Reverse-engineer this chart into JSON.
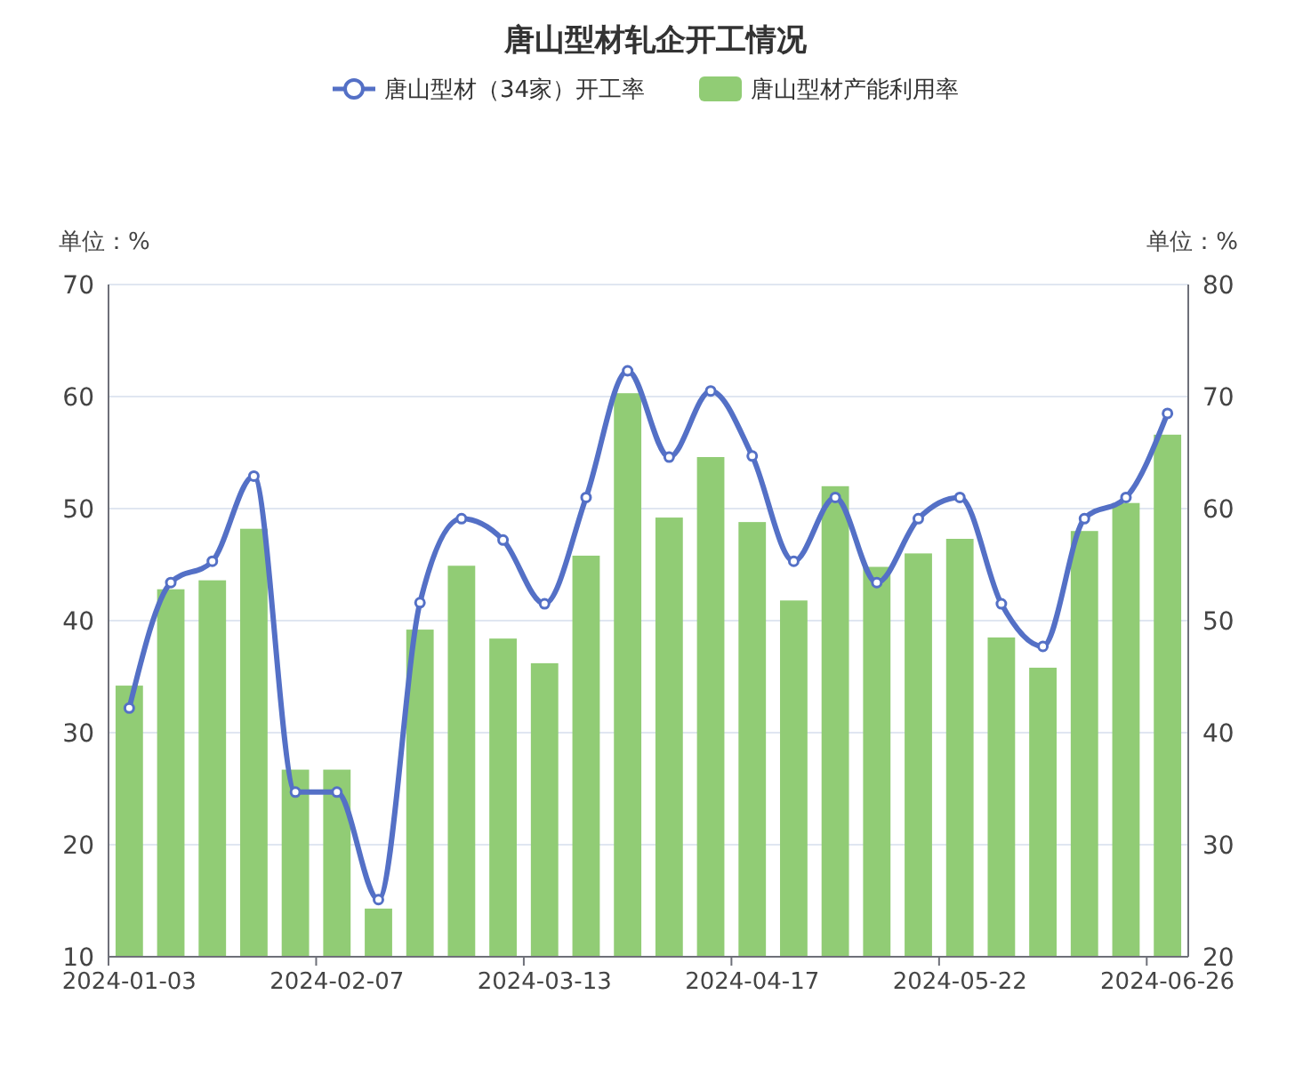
{
  "chart_data": {
    "type": "bar",
    "title": "唐山型材轧企开工情况",
    "ylabel": "单位：%",
    "y2label": "单位：%",
    "categories": [
      "2024-01-03",
      null,
      null,
      null,
      null,
      "2024-02-07",
      null,
      null,
      null,
      null,
      "2024-03-13",
      null,
      null,
      null,
      null,
      "2024-04-17",
      null,
      null,
      null,
      null,
      "2024-05-22",
      null,
      null,
      null,
      null,
      "2024-06-26"
    ],
    "series": [
      {
        "name": "唐山型材（34家）开工率",
        "type": "line",
        "color": "#5470c6",
        "marker": "circle",
        "values": [
          32.2,
          43.4,
          45.3,
          52.9,
          24.7,
          24.7,
          15.1,
          41.6,
          49.1,
          47.2,
          41.5,
          51.0,
          62.3,
          54.6,
          60.5,
          54.7,
          45.3,
          51.0,
          43.4,
          49.1,
          51.0,
          41.5,
          37.7,
          49.1,
          51.0,
          58.5
        ]
      },
      {
        "name": "唐山型材产能利用率",
        "axis": "y2",
        "color": "#91cc75",
        "values": [
          44.2,
          52.8,
          53.6,
          58.2,
          36.7,
          36.7,
          24.3,
          49.2,
          54.9,
          48.4,
          46.2,
          55.8,
          70.3,
          59.2,
          64.6,
          58.8,
          51.8,
          62.0,
          54.8,
          56.0,
          57.3,
          48.5,
          45.8,
          58.0,
          60.5,
          66.6
        ]
      }
    ],
    "ylim": [
      10,
      70
    ],
    "yticks": [
      10,
      20,
      30,
      40,
      50,
      60,
      70
    ],
    "y2lim": [
      20,
      80
    ],
    "y2ticks": [
      20,
      30,
      40,
      50,
      60,
      70,
      80
    ],
    "grid": "y",
    "legend": "top"
  }
}
